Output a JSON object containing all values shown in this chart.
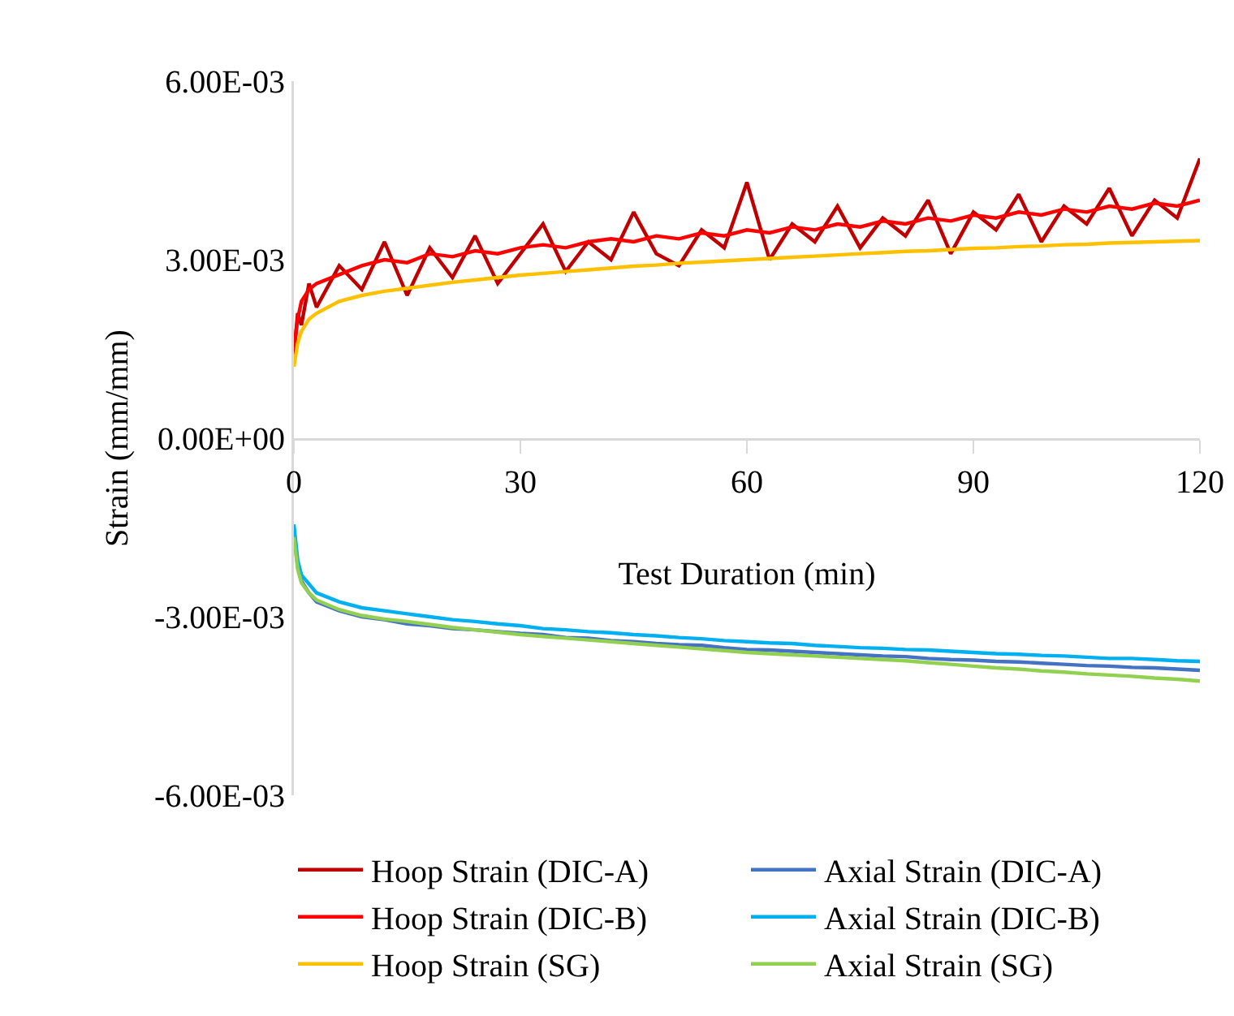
{
  "chart_data": {
    "type": "line",
    "xlabel": "Test Duration (min)",
    "ylabel": "Strain (mm/mm)",
    "x": [
      0,
      0.5,
      1,
      2,
      3,
      6,
      9,
      12,
      15,
      18,
      21,
      24,
      27,
      30,
      33,
      36,
      39,
      42,
      45,
      48,
      51,
      54,
      57,
      60,
      63,
      66,
      69,
      72,
      75,
      78,
      81,
      84,
      87,
      90,
      93,
      96,
      99,
      102,
      105,
      108,
      111,
      114,
      117,
      120
    ],
    "xlim": [
      0,
      120
    ],
    "xticks": [
      0,
      30,
      60,
      90,
      120
    ],
    "ylim": [
      -0.006,
      0.006
    ],
    "yticks": [
      {
        "value": 0.006,
        "label": "6.00E-03"
      },
      {
        "value": 0.003,
        "label": "3.00E-03"
      },
      {
        "value": 0,
        "label": "0.00E+00"
      },
      {
        "value": -0.003,
        "label": "-3.00E-03"
      },
      {
        "value": -0.006,
        "label": "-6.00E-03"
      }
    ],
    "grid": false,
    "legend": "bottom",
    "marker": "none",
    "line_style": "solid",
    "series": [
      {
        "name": "Hoop Strain (DIC-A)",
        "color": "#c00000",
        "values": [
          0.0014,
          0.0021,
          0.0019,
          0.0026,
          0.0022,
          0.0029,
          0.0025,
          0.0033,
          0.0024,
          0.0032,
          0.0027,
          0.0034,
          0.0026,
          0.0031,
          0.0036,
          0.0028,
          0.0033,
          0.003,
          0.0038,
          0.0031,
          0.0029,
          0.0035,
          0.0032,
          0.0043,
          0.003,
          0.0036,
          0.0033,
          0.0039,
          0.0032,
          0.0037,
          0.0034,
          0.004,
          0.0031,
          0.0038,
          0.0035,
          0.0041,
          0.0033,
          0.0039,
          0.0036,
          0.0042,
          0.0034,
          0.004,
          0.0037,
          0.0047
        ]
      },
      {
        "name": "Axial Strain (DIC-A)",
        "color": "#4472c4",
        "values": [
          -0.0016,
          -0.00215,
          -0.0024,
          -0.0026,
          -0.00275,
          -0.0029,
          -0.003,
          -0.00305,
          -0.00312,
          -0.00315,
          -0.0032,
          -0.00322,
          -0.00325,
          -0.00328,
          -0.0033,
          -0.00335,
          -0.00336,
          -0.0034,
          -0.00342,
          -0.00345,
          -0.00347,
          -0.00348,
          -0.00352,
          -0.00355,
          -0.00356,
          -0.00358,
          -0.0036,
          -0.00362,
          -0.00364,
          -0.00366,
          -0.00367,
          -0.0037,
          -0.00372,
          -0.00373,
          -0.00375,
          -0.00376,
          -0.00378,
          -0.0038,
          -0.00382,
          -0.00383,
          -0.00385,
          -0.00386,
          -0.00388,
          -0.0039
        ]
      },
      {
        "name": "Hoop Strain (DIC-B)",
        "color": "#ff0000",
        "values": [
          0.0015,
          0.002,
          0.0023,
          0.0025,
          0.0026,
          0.00275,
          0.0029,
          0.003,
          0.00295,
          0.0031,
          0.00305,
          0.00315,
          0.0031,
          0.0032,
          0.00325,
          0.0032,
          0.0033,
          0.00335,
          0.0033,
          0.0034,
          0.00335,
          0.00345,
          0.0034,
          0.0035,
          0.00345,
          0.00355,
          0.0035,
          0.0036,
          0.00355,
          0.00365,
          0.0036,
          0.0037,
          0.00365,
          0.00375,
          0.0037,
          0.0038,
          0.00375,
          0.00385,
          0.0038,
          0.0039,
          0.00385,
          0.00395,
          0.0039,
          0.004
        ]
      },
      {
        "name": "Axial Strain (DIC-B)",
        "color": "#00b0f0",
        "values": [
          -0.00145,
          -0.00205,
          -0.0023,
          -0.00245,
          -0.0026,
          -0.00275,
          -0.00285,
          -0.0029,
          -0.00295,
          -0.003,
          -0.00305,
          -0.00308,
          -0.00312,
          -0.00315,
          -0.0032,
          -0.00322,
          -0.00325,
          -0.00327,
          -0.0033,
          -0.00332,
          -0.00335,
          -0.00337,
          -0.0034,
          -0.00342,
          -0.00344,
          -0.00345,
          -0.00348,
          -0.0035,
          -0.00352,
          -0.00353,
          -0.00355,
          -0.00356,
          -0.00358,
          -0.0036,
          -0.00362,
          -0.00363,
          -0.00365,
          -0.00366,
          -0.00368,
          -0.0037,
          -0.0037,
          -0.00372,
          -0.00374,
          -0.00375
        ]
      },
      {
        "name": "Hoop Strain (SG)",
        "color": "#ffc000",
        "values": [
          0.0012,
          0.0016,
          0.0018,
          0.002,
          0.0021,
          0.0023,
          0.0024,
          0.00247,
          0.00252,
          0.00257,
          0.00262,
          0.00266,
          0.0027,
          0.00274,
          0.00277,
          0.0028,
          0.00283,
          0.00286,
          0.00289,
          0.00291,
          0.00294,
          0.00296,
          0.00298,
          0.003,
          0.00302,
          0.00304,
          0.00306,
          0.00308,
          0.0031,
          0.00312,
          0.00314,
          0.00315,
          0.00317,
          0.00319,
          0.0032,
          0.00322,
          0.00323,
          0.00325,
          0.00326,
          0.00328,
          0.00329,
          0.0033,
          0.00331,
          0.00332
        ]
      },
      {
        "name": "Axial Strain (SG)",
        "color": "#92d050",
        "values": [
          -0.00166,
          -0.0022,
          -0.00243,
          -0.0026,
          -0.00272,
          -0.00288,
          -0.00298,
          -0.00304,
          -0.00308,
          -0.00313,
          -0.00318,
          -0.00322,
          -0.00326,
          -0.0033,
          -0.00333,
          -0.00336,
          -0.00339,
          -0.00342,
          -0.00345,
          -0.00348,
          -0.00351,
          -0.00354,
          -0.00357,
          -0.0036,
          -0.00362,
          -0.00364,
          -0.00366,
          -0.00368,
          -0.0037,
          -0.00372,
          -0.00374,
          -0.00377,
          -0.0038,
          -0.00383,
          -0.00386,
          -0.00388,
          -0.00391,
          -0.00393,
          -0.00396,
          -0.00398,
          -0.004,
          -0.00403,
          -0.00405,
          -0.00408
        ]
      }
    ]
  }
}
